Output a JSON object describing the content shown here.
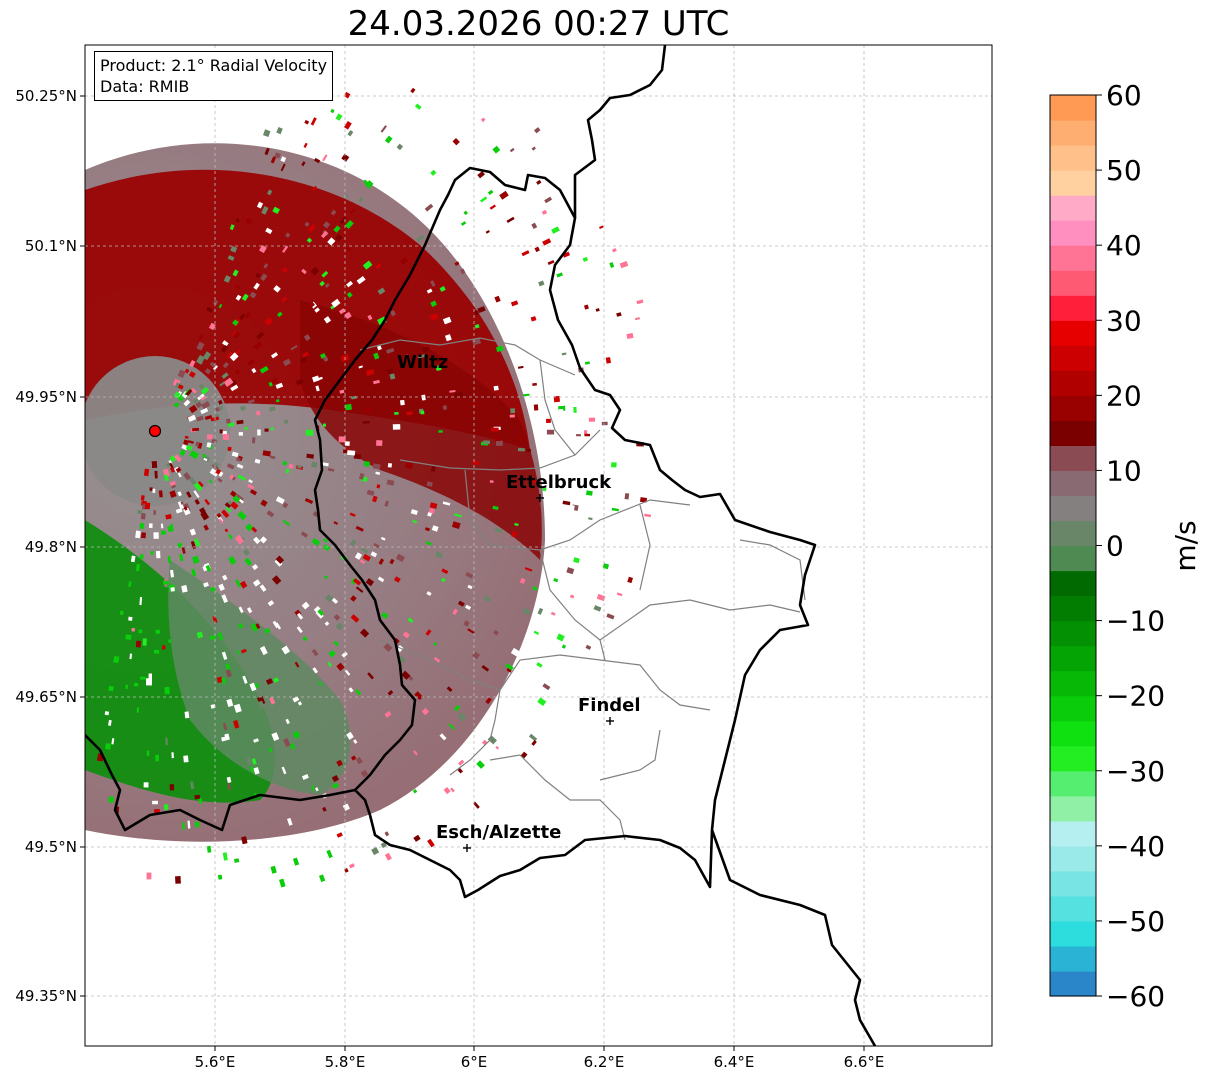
{
  "title": "24.03.2026 00:27 UTC",
  "info": {
    "product": "Product: 2.1° Radial Velocity",
    "source": "Data: RMIB"
  },
  "x_ticks": [
    "5.6°E",
    "5.8°E",
    "6°E",
    "6.2°E",
    "6.4°E",
    "6.6°E"
  ],
  "y_ticks": [
    "50.25°N",
    "50.1°N",
    "49.95°N",
    "49.8°N",
    "49.65°N",
    "49.5°N",
    "49.35°N"
  ],
  "cities": [
    {
      "name": "Wiltz"
    },
    {
      "name": "Ettelbruck"
    },
    {
      "name": "Findel"
    },
    {
      "name": "Esch/Alzette"
    }
  ],
  "colorbar": {
    "label": "m/s",
    "ticks": [
      "60",
      "50",
      "40",
      "30",
      "20",
      "10",
      "0",
      "−10",
      "−20",
      "−30",
      "−40",
      "−50",
      "−60"
    ],
    "colors": [
      "#2a86c8",
      "#2ab3d4",
      "#2ddddd",
      "#56e1e1",
      "#78e4e4",
      "#9aeaea",
      "#b5efef",
      "#8ff0a6",
      "#55ee70",
      "#22ee22",
      "#0fe00f",
      "#0acc0a",
      "#07b807",
      "#05a405",
      "#039003",
      "#027d02",
      "#016b01",
      "#4f8a53",
      "#6a8669",
      "#858080",
      "#8a6a72",
      "#8a4c52",
      "#7a0000",
      "#990000",
      "#b00000",
      "#cc0000",
      "#e60000",
      "#ff1f3a",
      "#ff5a73",
      "#ff7395",
      "#ff8fbf",
      "#ffaac7",
      "#ffd1a0",
      "#ffc08a",
      "#ffae72",
      "#ff9a55"
    ]
  }
}
